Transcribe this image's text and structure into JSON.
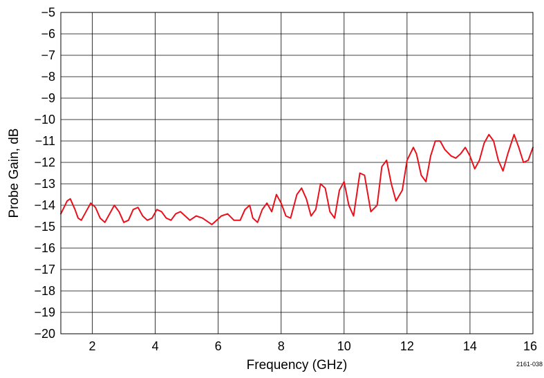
{
  "chart_data": {
    "type": "line",
    "title": "",
    "xlabel": "Frequency (GHz)",
    "ylabel": "Probe Gain, dB",
    "xlim": [
      1,
      16
    ],
    "ylim": [
      -20,
      -5
    ],
    "x_ticks": [
      2,
      4,
      6,
      8,
      10,
      12,
      14,
      16
    ],
    "x_tick_labels": [
      "2",
      "4",
      "6",
      "8",
      "10",
      "12",
      "14",
      "16"
    ],
    "y_ticks": [
      -5,
      -6,
      -7,
      -8,
      -9,
      -10,
      -11,
      -12,
      -13,
      -14,
      -15,
      -16,
      -17,
      -18,
      -19,
      -20
    ],
    "y_tick_labels": [
      "−5",
      "−6",
      "−7",
      "−8",
      "−9",
      "−10",
      "−11",
      "−12",
      "−13",
      "−14",
      "−15",
      "−16",
      "−17",
      "−18",
      "−19",
      "−20"
    ],
    "grid": true,
    "legend": false,
    "line_color": "#e8101a",
    "series": [
      {
        "x": [
          1.0,
          1.1,
          1.2,
          1.3,
          1.45,
          1.55,
          1.65,
          1.8,
          1.95,
          2.1,
          2.25,
          2.4,
          2.55,
          2.7,
          2.85,
          3.0,
          3.15,
          3.3,
          3.45,
          3.6,
          3.75,
          3.9,
          4.05,
          4.2,
          4.35,
          4.5,
          4.65,
          4.8,
          4.95,
          5.1,
          5.3,
          5.5,
          5.7,
          5.8,
          5.95,
          6.1,
          6.3,
          6.5,
          6.7,
          6.85,
          7.0,
          7.1,
          7.25,
          7.4,
          7.55,
          7.7,
          7.85,
          8.0,
          8.15,
          8.3,
          8.5,
          8.65,
          8.8,
          8.95,
          9.1,
          9.25,
          9.4,
          9.55,
          9.7,
          9.85,
          10.0,
          10.15,
          10.3,
          10.5,
          10.65,
          10.85,
          11.05,
          11.2,
          11.35,
          11.5,
          11.65,
          11.85,
          12.0,
          12.2,
          12.3,
          12.45,
          12.6,
          12.75,
          12.9,
          13.05,
          13.2,
          13.4,
          13.55,
          13.7,
          13.85,
          14.0,
          14.15,
          14.3,
          14.45,
          14.6,
          14.75,
          14.9,
          15.05,
          15.2,
          15.4,
          15.55,
          15.7,
          15.85,
          16.0
        ],
        "y": [
          -14.4,
          -14.1,
          -13.8,
          -13.7,
          -14.2,
          -14.6,
          -14.7,
          -14.3,
          -13.9,
          -14.1,
          -14.6,
          -14.8,
          -14.4,
          -14.0,
          -14.3,
          -14.8,
          -14.7,
          -14.2,
          -14.1,
          -14.5,
          -14.7,
          -14.6,
          -14.2,
          -14.3,
          -14.6,
          -14.7,
          -14.4,
          -14.3,
          -14.5,
          -14.7,
          -14.5,
          -14.6,
          -14.8,
          -14.9,
          -14.7,
          -14.5,
          -14.4,
          -14.7,
          -14.7,
          -14.2,
          -14.0,
          -14.6,
          -14.8,
          -14.2,
          -13.9,
          -14.3,
          -13.5,
          -13.9,
          -14.5,
          -14.6,
          -13.5,
          -13.2,
          -13.7,
          -14.5,
          -14.2,
          -13.0,
          -13.2,
          -14.3,
          -14.6,
          -13.3,
          -12.9,
          -14.0,
          -14.5,
          -12.5,
          -12.6,
          -14.3,
          -14.0,
          -12.2,
          -11.9,
          -13.0,
          -13.8,
          -13.3,
          -11.9,
          -11.3,
          -11.6,
          -12.6,
          -12.9,
          -11.7,
          -11.0,
          -11.0,
          -11.4,
          -11.7,
          -11.8,
          -11.6,
          -11.3,
          -11.7,
          -12.3,
          -11.9,
          -11.1,
          -10.7,
          -11.0,
          -11.9,
          -12.4,
          -11.6,
          -10.7,
          -11.3,
          -12.0,
          -11.9,
          -11.3
        ]
      }
    ],
    "figure_id": "2161-038"
  }
}
